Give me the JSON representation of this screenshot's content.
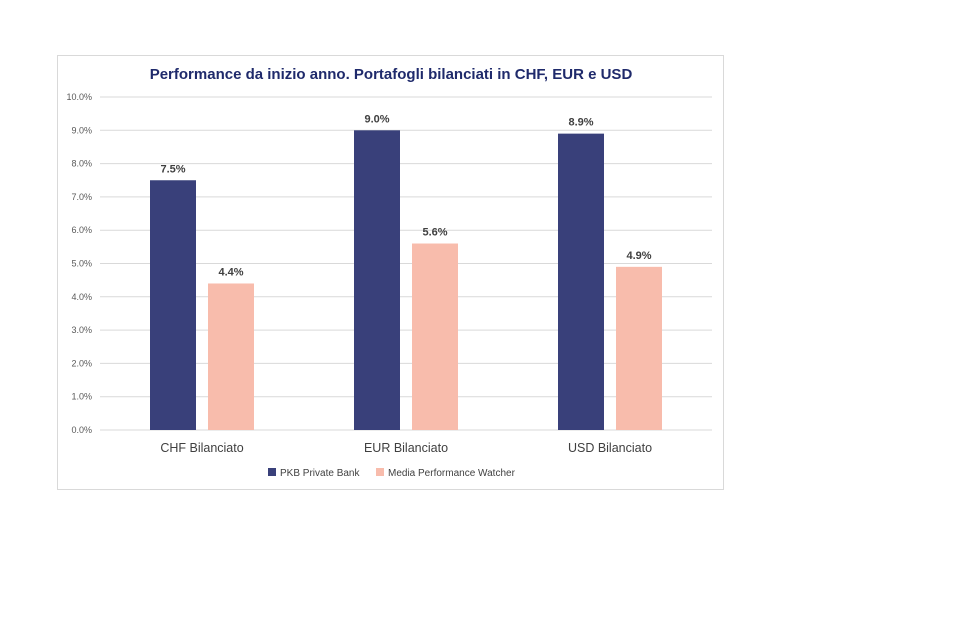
{
  "colors": {
    "pkb": "#39407a",
    "watcher": "#f8bcac",
    "title": "#1f2a6b",
    "grid": "#d9d9d9"
  },
  "chart_data": {
    "type": "bar",
    "title": "Performance da inizio anno. Portafogli bilanciati in CHF, EUR e USD",
    "categories": [
      "CHF Bilanciato",
      "EUR Bilanciato",
      "USD Bilanciato"
    ],
    "series": [
      {
        "name": "PKB Private Bank",
        "values": [
          7.5,
          9.0,
          8.9
        ],
        "labels": [
          "7.5%",
          "9.0%",
          "8.9%"
        ]
      },
      {
        "name": "Media Performance Watcher",
        "values": [
          4.4,
          5.6,
          4.9
        ],
        "labels": [
          "4.4%",
          "5.6%",
          "4.9%"
        ]
      }
    ],
    "yticks": [
      "0.0%",
      "1.0%",
      "2.0%",
      "3.0%",
      "4.0%",
      "5.0%",
      "6.0%",
      "7.0%",
      "8.0%",
      "9.0%",
      "10.0%"
    ],
    "ylim": [
      0,
      10
    ],
    "grid": true,
    "legend_position": "bottom"
  }
}
